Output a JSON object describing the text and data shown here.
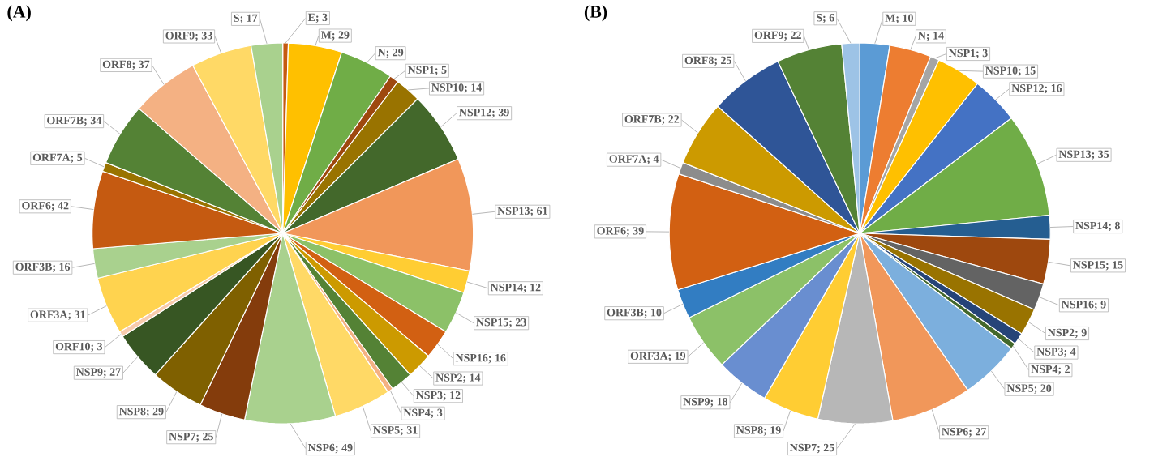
{
  "chart_data": [
    {
      "type": "pie",
      "title": "(A)",
      "value_labels": [
        "; 3",
        "; 29",
        "; 29",
        "; 5",
        "; 14",
        "; 39",
        "; 61",
        "; 12",
        "; 23",
        "; 16",
        "; 14",
        "; 12",
        "; 3",
        "; 31",
        "; 49",
        "; 25",
        "; 29",
        "; 27",
        "; 3",
        "; 31",
        "; 16",
        "; 42",
        "; 5",
        "; 34",
        "; 37",
        "; 33",
        "; 17"
      ],
      "categories": [
        "E",
        "M",
        "N",
        "NSP1",
        "NSP10",
        "NSP12",
        "NSP13",
        "NSP14",
        "NSP15",
        "NSP16",
        "NSP2",
        "NSP3",
        "NSP4",
        "NSP5",
        "NSP6",
        "NSP7",
        "NSP8",
        "NSP9",
        "ORF10",
        "ORF3A",
        "ORF3B",
        "ORF6",
        "ORF7A",
        "ORF7B",
        "ORF8",
        "ORF9",
        "S"
      ],
      "values": [
        3,
        29,
        29,
        5,
        14,
        39,
        61,
        12,
        23,
        16,
        14,
        12,
        3,
        31,
        49,
        25,
        29,
        27,
        3,
        31,
        16,
        42,
        5,
        34,
        37,
        33,
        17
      ],
      "colors": [
        "#c55a11",
        "#ffc000",
        "#70ad47",
        "#9e480e",
        "#997300",
        "#43682b",
        "#f1975a",
        "#ffcd33",
        "#8cc168",
        "#d26012",
        "#cc9a00",
        "#548235",
        "#f4b183",
        "#ffd966",
        "#a9d18e",
        "#843c0c",
        "#7f6000",
        "#375623",
        "#f8cbad",
        "#ffd34f",
        "#a9d18e",
        "#c55a11",
        "#997300",
        "#548235",
        "#f4b183",
        "#ffd966",
        "#a9d18e"
      ]
    },
    {
      "type": "pie",
      "title": "(B)",
      "value_labels": [
        "; 10",
        "; 14",
        "; 3",
        "; 15",
        "; 16",
        "; 35",
        "; 8",
        "; 15",
        "; 9",
        "; 9",
        "; 4",
        "; 2",
        "; 20",
        "; 27",
        "; 25",
        "; 19",
        "; 18",
        "; 19",
        "; 10",
        "; 39",
        "; 4",
        "; 22",
        "; 25",
        "; 22",
        "; 6"
      ],
      "categories": [
        "M",
        "N",
        "NSP1",
        "NSP10",
        "NSP12",
        "NSP13",
        "NSP14",
        "NSP15",
        "NSP16",
        "NSP2",
        "NSP3",
        "NSP4",
        "NSP5",
        "NSP6",
        "NSP7",
        "NSP8",
        "NSP9",
        "ORF3A",
        "ORF3B",
        "ORF6",
        "ORF7A",
        "ORF7B",
        "ORF8",
        "ORF9",
        "S"
      ],
      "values": [
        10,
        14,
        3,
        15,
        16,
        35,
        8,
        15,
        9,
        9,
        4,
        2,
        20,
        27,
        25,
        19,
        18,
        19,
        10,
        39,
        4,
        22,
        25,
        22,
        6
      ],
      "colors": [
        "#5b9bd5",
        "#ed7d31",
        "#a5a5a5",
        "#ffc000",
        "#4472c4",
        "#70ad47",
        "#255e91",
        "#9e480e",
        "#636363",
        "#997300",
        "#264478",
        "#43682b",
        "#7cafdd",
        "#f1975a",
        "#b7b7b7",
        "#ffcd33",
        "#698ed0",
        "#8cc168",
        "#327dc2",
        "#d26012",
        "#8c8c8c",
        "#cc9a00",
        "#2f5597",
        "#548235",
        "#9dc3e6"
      ]
    }
  ]
}
